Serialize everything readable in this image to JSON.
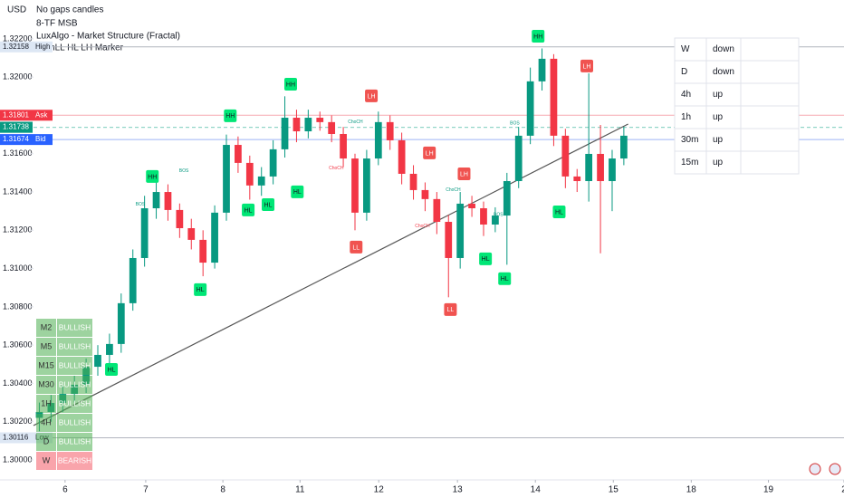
{
  "chart_data": {
    "type": "candlestick",
    "currency": "USD",
    "indicators": [
      "No gaps candles",
      "8-TF MSB",
      "LuxAlgo - Market Structure (Fractal)",
      "HighLL HL LH Marker"
    ],
    "up_color": "#089981",
    "down_color": "#f23645",
    "grid": false,
    "ylim": [
      1.29896,
      1.32403
    ],
    "yticks": [
      {
        "value": 1.3,
        "label": "1.30000"
      },
      {
        "value": 1.302,
        "label": "1.30200"
      },
      {
        "value": 1.304,
        "label": "1.30400"
      },
      {
        "value": 1.306,
        "label": "1.30600"
      },
      {
        "value": 1.308,
        "label": "1.30800"
      },
      {
        "value": 1.31,
        "label": "1.31000"
      },
      {
        "value": 1.312,
        "label": "1.31200"
      },
      {
        "value": 1.314,
        "label": "1.31400"
      },
      {
        "value": 1.316,
        "label": "1.31600"
      },
      {
        "value": 1.318,
        "label": "1.31800"
      },
      {
        "value": 1.32,
        "label": "1.32000"
      },
      {
        "value": 1.322,
        "label": "1.32200"
      }
    ],
    "xlim": [
      0,
      208
    ],
    "xticks": [
      {
        "value": 8.1,
        "label": "6"
      },
      {
        "value": 28.8,
        "label": "7"
      },
      {
        "value": 48.6,
        "label": "8"
      },
      {
        "value": 68.4,
        "label": "11"
      },
      {
        "value": 88.6,
        "label": "12"
      },
      {
        "value": 108.8,
        "label": "13"
      },
      {
        "value": 128.8,
        "label": "14"
      },
      {
        "value": 148.8,
        "label": "15"
      },
      {
        "value": 168.8,
        "label": "18"
      },
      {
        "value": 188.6,
        "label": "19"
      },
      {
        "value": 208,
        "label": "2"
      }
    ],
    "x": [
      1.5,
      4.5,
      7.5,
      10.5,
      13.5,
      16.5,
      19.5,
      22.5,
      25.5,
      28.5,
      31.5,
      34.5,
      37.5,
      40.5,
      43.5,
      46.5,
      49.5,
      52.5,
      55.5,
      58.5,
      61.5,
      64.5,
      67.5,
      70.5,
      73.5,
      76.5,
      79.5,
      82.5,
      85.5,
      88.5,
      91.5,
      94.5,
      97.5,
      100.5,
      103.5,
      106.5,
      109.5,
      112.5,
      115.5,
      118.5,
      121.5,
      124.5,
      127.5,
      130.5,
      133.5,
      136.5,
      139.5,
      142.5,
      145.5,
      148.5,
      151.5
    ],
    "open": [
      1.3022,
      1.30251,
      1.30298,
      1.30345,
      1.30393,
      1.30487,
      1.30549,
      1.30606,
      1.30819,
      1.31055,
      1.31315,
      1.314,
      1.31306,
      1.31211,
      1.3115,
      1.31031,
      1.31292,
      1.31646,
      1.31552,
      1.31434,
      1.31481,
      1.31623,
      1.31788,
      1.31717,
      1.31788,
      1.31765,
      1.31703,
      1.31575,
      1.31292,
      1.31575,
      1.31765,
      1.3167,
      1.31495,
      1.3141,
      1.31363,
      1.31244,
      1.31055,
      1.31339,
      1.31315,
      1.3123,
      1.31277,
      1.31457,
      1.31694,
      1.31978,
      1.32096,
      1.31694,
      1.31481,
      1.31457,
      1.31599,
      1.31457,
      1.31575
    ],
    "high": [
      1.303,
      1.3034,
      1.3039,
      1.3044,
      1.3053,
      1.306,
      1.3066,
      1.3087,
      1.311,
      1.3138,
      1.3145,
      1.3144,
      1.3134,
      1.3126,
      1.312,
      1.3133,
      1.317,
      1.3169,
      1.3159,
      1.3153,
      1.3167,
      1.319,
      1.3183,
      1.3183,
      1.3182,
      1.318,
      1.3174,
      1.316,
      1.3162,
      1.3182,
      1.318,
      1.3171,
      1.3154,
      1.3145,
      1.314,
      1.3128,
      1.314,
      1.3138,
      1.3135,
      1.3132,
      1.315,
      1.3174,
      1.3205,
      1.3215,
      1.3212,
      1.3173,
      1.3152,
      1.3202,
      1.3175,
      1.3162,
      1.3174
    ],
    "low": [
      1.3015,
      1.302,
      1.3025,
      1.303,
      1.3035,
      1.3044,
      1.305,
      1.3056,
      1.3078,
      1.3101,
      1.3126,
      1.3125,
      1.3116,
      1.311,
      1.3096,
      1.31,
      1.3125,
      1.315,
      1.3136,
      1.3138,
      1.3144,
      1.3158,
      1.3166,
      1.3168,
      1.3172,
      1.3166,
      1.3153,
      1.312,
      1.3125,
      1.3154,
      1.3162,
      1.3144,
      1.3136,
      1.313,
      1.3118,
      1.3085,
      1.31,
      1.3127,
      1.3117,
      1.3119,
      1.3102,
      1.3142,
      1.3165,
      1.3193,
      1.3164,
      1.3142,
      1.314,
      1.3135,
      1.3108,
      1.313,
      1.3154
    ],
    "close": [
      1.30251,
      1.30298,
      1.30345,
      1.30393,
      1.30487,
      1.30549,
      1.30606,
      1.30819,
      1.31055,
      1.31315,
      1.314,
      1.31306,
      1.31211,
      1.3115,
      1.31031,
      1.31292,
      1.31646,
      1.31552,
      1.31434,
      1.31481,
      1.31623,
      1.31788,
      1.31717,
      1.31788,
      1.31765,
      1.31703,
      1.31575,
      1.31292,
      1.31575,
      1.31765,
      1.3167,
      1.31495,
      1.3141,
      1.31363,
      1.31244,
      1.31055,
      1.31339,
      1.31315,
      1.3123,
      1.31277,
      1.31457,
      1.31694,
      1.31978,
      1.32096,
      1.31694,
      1.31481,
      1.31457,
      1.31599,
      1.31457,
      1.31575,
      1.31694
    ],
    "price_lines": [
      {
        "value": 1.32158,
        "tag": "High",
        "color": "#dde7f4",
        "text_color": "#131722",
        "line": "#b2b5be"
      },
      {
        "value": 1.31801,
        "tag": "Ask",
        "color": "#f23645",
        "text_color": "#ffffff",
        "line": "#f7a9b0"
      },
      {
        "value": 1.31738,
        "color": "#089981",
        "text_color": "#ffffff",
        "line": "#8fd4c6"
      },
      {
        "value": 1.31738,
        "color": "#089981",
        "text_color": "#ffffff",
        "line": "#8fd4c6"
      },
      {
        "value": 1.31674,
        "tag": "Bid",
        "color": "#2962ff",
        "text_color": "#ffffff",
        "line": "#9fb4f5"
      },
      {
        "value": 1.30116,
        "tag": "Low",
        "color": "#dde7f4",
        "text_color": "#131722",
        "line": "#b2b5be"
      }
    ],
    "trendline": {
      "x": [
        0,
        152.6
      ],
      "values": [
        1.3018,
        1.31755
      ],
      "color": "#555555"
    },
    "markers": [
      {
        "label": "HL",
        "x": 20,
        "value": 1.30473,
        "color": "#00e676"
      },
      {
        "label": "HH",
        "x": 30.5,
        "value": 1.31481,
        "color": "#00e676"
      },
      {
        "label": "HL",
        "x": 42.8,
        "value": 1.3089,
        "color": "#00e676"
      },
      {
        "label": "HH",
        "x": 50.5,
        "value": 1.31798,
        "color": "#00e676"
      },
      {
        "label": "HL",
        "x": 55.1,
        "value": 1.31306,
        "color": "#00e676"
      },
      {
        "label": "HL",
        "x": 60.2,
        "value": 1.31334,
        "color": "#00e676"
      },
      {
        "label": "HH",
        "x": 66,
        "value": 1.31963,
        "color": "#00e676"
      },
      {
        "label": "HL",
        "x": 67.7,
        "value": 1.31401,
        "color": "#00e676"
      },
      {
        "label": "LL",
        "x": 82.8,
        "value": 1.31112,
        "color": "#f05350"
      },
      {
        "label": "LH",
        "x": 86.7,
        "value": 1.31902,
        "color": "#f05350"
      },
      {
        "label": "LH",
        "x": 101.6,
        "value": 1.31604,
        "color": "#f05350"
      },
      {
        "label": "LL",
        "x": 107,
        "value": 1.30786,
        "color": "#f05350"
      },
      {
        "label": "LH",
        "x": 110.5,
        "value": 1.31495,
        "color": "#f05350"
      },
      {
        "label": "HL",
        "x": 116,
        "value": 1.31051,
        "color": "#00e676"
      },
      {
        "label": "HL",
        "x": 120.9,
        "value": 1.30947,
        "color": "#00e676"
      },
      {
        "label": "HH",
        "x": 129.5,
        "value": 1.32214,
        "color": "#00e676"
      },
      {
        "label": "HL",
        "x": 134.9,
        "value": 1.31296,
        "color": "#00e676"
      },
      {
        "label": "LH",
        "x": 142,
        "value": 1.32058,
        "color": "#f05350"
      }
    ],
    "structure_labels": [
      {
        "label": "BOS",
        "x": 27.4,
        "value": 1.31335,
        "color": "#089981"
      },
      {
        "label": "BOS",
        "x": 38.6,
        "value": 1.3151,
        "color": "#089981"
      },
      {
        "label": "ChoCH",
        "x": 77.7,
        "value": 1.31525,
        "color": "#f23645"
      },
      {
        "label": "ChoCH",
        "x": 82.6,
        "value": 1.31766,
        "color": "#089981"
      },
      {
        "label": "ChoCH",
        "x": 99.8,
        "value": 1.31222,
        "color": "#f23645"
      },
      {
        "label": "ChoCH",
        "x": 107.7,
        "value": 1.31411,
        "color": "#089981"
      },
      {
        "label": "BOS",
        "x": 119.3,
        "value": 1.31282,
        "color": "#089981"
      },
      {
        "label": "BOS",
        "x": 123.5,
        "value": 1.3176,
        "color": "#089981"
      }
    ],
    "trend_table": {
      "rows": [
        [
          "W",
          "down"
        ],
        [
          "D",
          "down"
        ],
        [
          "4h",
          "up"
        ],
        [
          "1h",
          "up"
        ],
        [
          "30m",
          "up"
        ],
        [
          "15m",
          "up"
        ]
      ]
    },
    "bias_panel": {
      "rows": [
        {
          "tf": "M2",
          "bias": "BULLISH",
          "color": "rgba(76,175,80,0.55)"
        },
        {
          "tf": "M5",
          "bias": "BULLISH",
          "color": "rgba(76,175,80,0.55)"
        },
        {
          "tf": "M15",
          "bias": "BULLISH",
          "color": "rgba(76,175,80,0.55)"
        },
        {
          "tf": "M30",
          "bias": "BULLISH",
          "color": "rgba(76,175,80,0.55)"
        },
        {
          "tf": "1H",
          "bias": "BULLISH",
          "color": "rgba(76,175,80,0.55)"
        },
        {
          "tf": "4H",
          "bias": "BULLISH",
          "color": "rgba(76,175,80,0.55)"
        },
        {
          "tf": "D",
          "bias": "BULLISH",
          "color": "rgba(76,175,80,0.55)"
        },
        {
          "tf": "W",
          "bias": "BEARISH",
          "color": "rgba(242,54,69,0.45)"
        }
      ]
    }
  }
}
